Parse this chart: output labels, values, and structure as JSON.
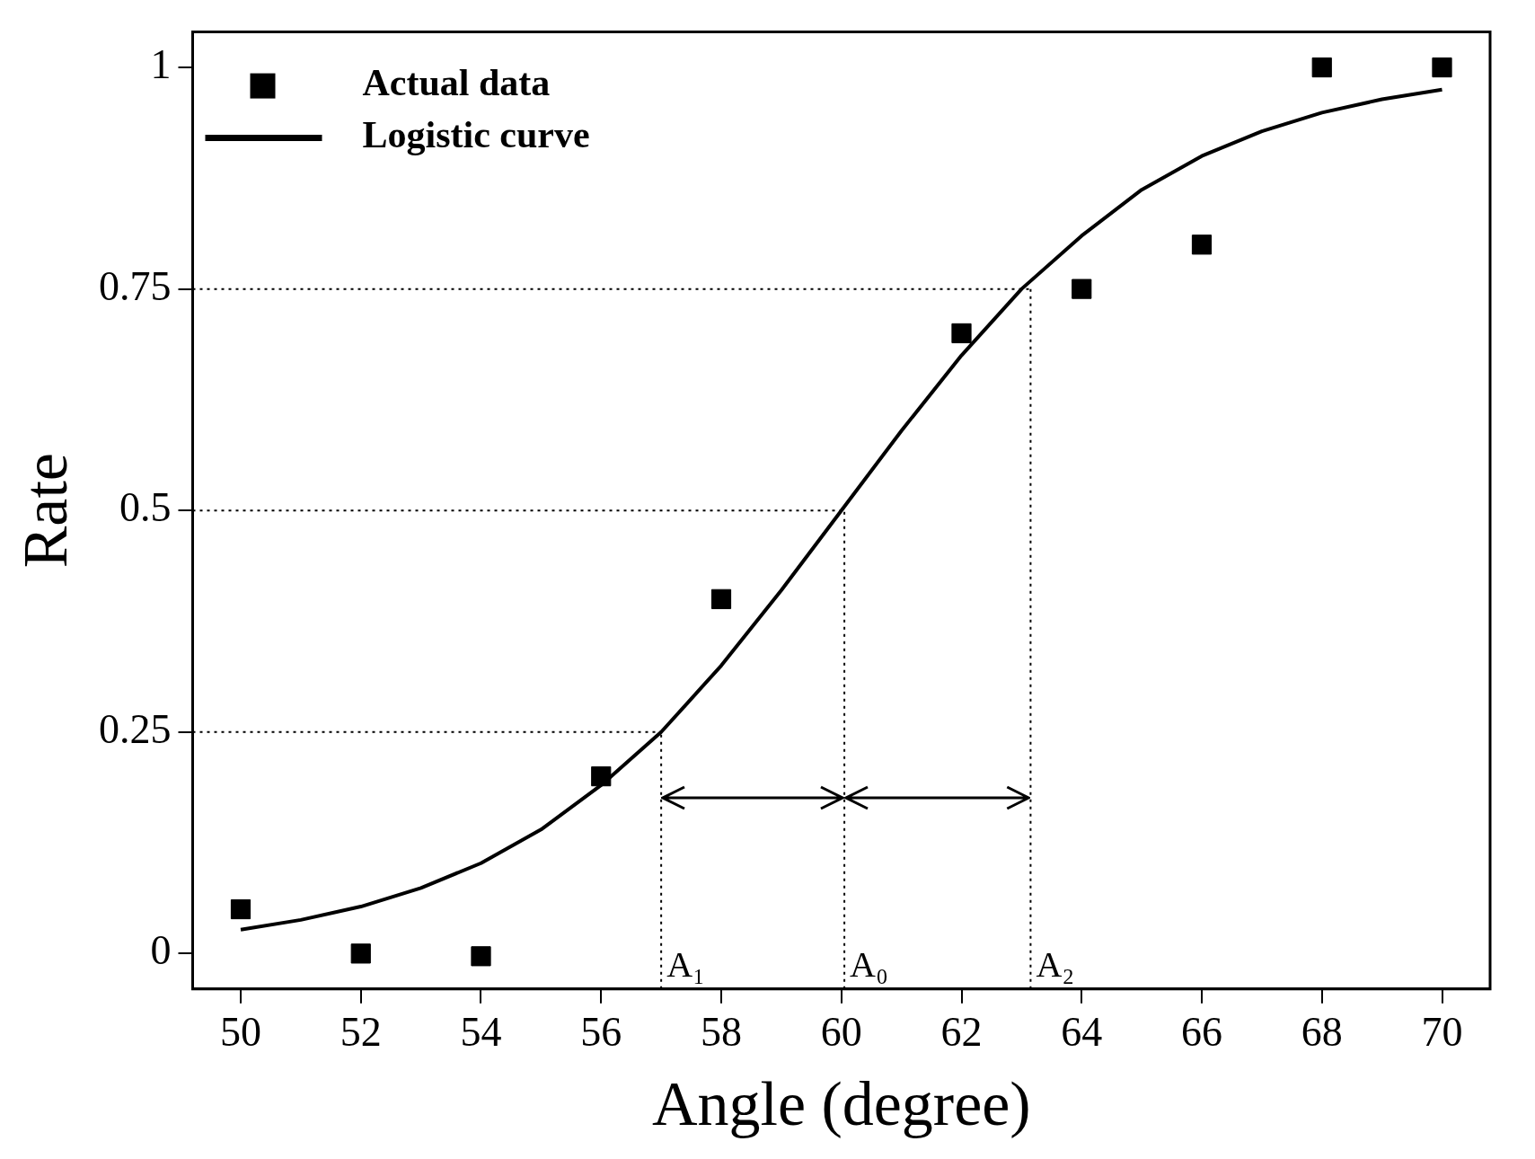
{
  "chart_data": {
    "type": "scatter",
    "xlabel": "Angle (degree)",
    "ylabel": "Rate",
    "xlim": [
      49.2,
      70.8
    ],
    "ylim": [
      -0.04,
      1.04
    ],
    "xticks": [
      50,
      52,
      54,
      56,
      58,
      60,
      62,
      64,
      66,
      68,
      70
    ],
    "yticks": [
      0,
      0.25,
      0.5,
      0.75,
      1
    ],
    "grid": false,
    "legend": "top left",
    "series": [
      {
        "name": "Actual data",
        "color": "#000000",
        "marker": "square",
        "x": [
          50,
          52,
          54,
          56,
          58,
          62,
          64,
          66,
          68,
          70
        ],
        "values": [
          0.05,
          0,
          -0.003,
          0.2,
          0.4,
          0.7,
          0.75,
          0.8,
          1,
          1
        ]
      },
      {
        "name": "Logistic curve",
        "type": "line",
        "color": "#000000",
        "marker": "none",
        "line_style": "solid",
        "x": [
          50,
          51,
          52,
          53,
          54,
          55,
          56,
          57,
          58,
          59,
          60,
          61,
          62,
          63,
          64,
          65,
          66,
          67,
          68,
          69,
          70
        ],
        "values": [
          0.027,
          0.038,
          0.053,
          0.074,
          0.102,
          0.14,
          0.19,
          0.25,
          0.325,
          0.41,
          0.5,
          0.59,
          0.675,
          0.75,
          0.81,
          0.862,
          0.9,
          0.928,
          0.949,
          0.964,
          0.975
        ]
      }
    ],
    "ref_lines": [
      {
        "axis": "y",
        "value": 0.25,
        "line_style": "dotted"
      },
      {
        "axis": "y",
        "value": 0.5,
        "line_style": "dotted"
      },
      {
        "axis": "y",
        "value": 0.75,
        "line_style": "dotted"
      },
      {
        "axis": "x",
        "value": 57,
        "label": "A₁",
        "line_style": "dotted"
      },
      {
        "axis": "x",
        "value": 60.05,
        "label": "A₀",
        "line_style": "dotted"
      },
      {
        "axis": "x",
        "value": 63.15,
        "label": "A₂",
        "line_style": "dotted"
      }
    ]
  }
}
